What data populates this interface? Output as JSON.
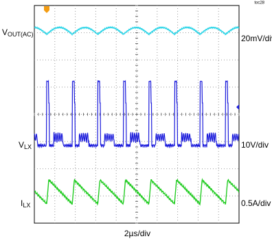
{
  "header": {
    "tag": "toc28"
  },
  "traces": [
    {
      "label_main": "V",
      "label_sub": "OUT(AC)",
      "scale": "20mV/div"
    },
    {
      "label_main": "V",
      "label_sub": "LX",
      "scale": "10V/div"
    },
    {
      "label_main": "I",
      "label_sub": "LX",
      "scale": "0.5A/div"
    }
  ],
  "time_scale": "2µs/div"
}
